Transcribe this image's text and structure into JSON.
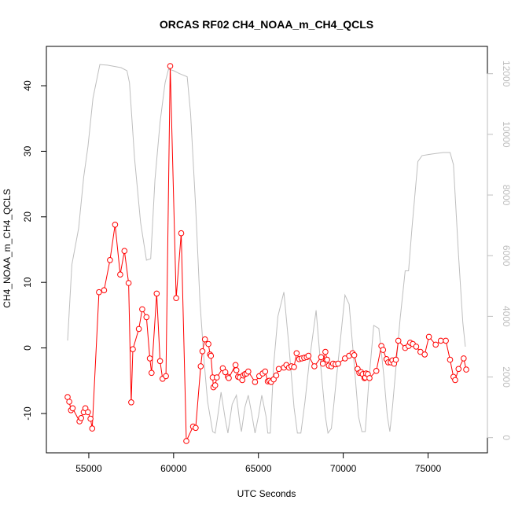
{
  "chart_data": {
    "type": "line",
    "title": "ORCAS RF02 CH4_NOAA_m_CH4_QCLS",
    "xlabel": "UTC Seconds",
    "ylabel": "CH4_NOAA_m_CH4_QCLS",
    "xlim": [
      52500,
      78500
    ],
    "ylim": [
      -16,
      46
    ],
    "y2lim": [
      -500,
      12900
    ],
    "x_ticks": [
      55000,
      60000,
      65000,
      70000,
      75000
    ],
    "y_ticks": [
      -10,
      0,
      10,
      20,
      30,
      40
    ],
    "y2_ticks": [
      0,
      2000,
      4000,
      6000,
      8000,
      10000,
      12000
    ],
    "x_tick_labels": [
      "55000",
      "60000",
      "65000",
      "70000",
      "75000"
    ],
    "y_tick_labels": [
      "-10",
      "0",
      "10",
      "20",
      "30",
      "40"
    ],
    "y2_tick_labels": [
      "0",
      "2000",
      "4000",
      "6000",
      "8000",
      "10000",
      "12000"
    ],
    "grid": false,
    "colors": {
      "primary": "#ff0000",
      "secondary": "#bebebe"
    },
    "series": [
      {
        "axis": "left",
        "style": "line+markers",
        "color": "#ff0000",
        "points": [
          [
            53750,
            -7.5
          ],
          [
            53850,
            -8.2
          ],
          [
            53950,
            -9.5
          ],
          [
            54050,
            -9.2
          ],
          [
            54450,
            -11.2
          ],
          [
            54550,
            -10.7
          ],
          [
            54700,
            -9.8
          ],
          [
            54800,
            -9.2
          ],
          [
            54950,
            -9.8
          ],
          [
            55100,
            -10.8
          ],
          [
            55200,
            -12.3
          ],
          [
            55600,
            8.5
          ],
          [
            55900,
            8.8
          ],
          [
            56250,
            13.4
          ],
          [
            56550,
            18.8
          ],
          [
            56850,
            11.2
          ],
          [
            57100,
            14.8
          ],
          [
            57350,
            9.9
          ],
          [
            57500,
            -8.3
          ],
          [
            57600,
            -0.2
          ],
          [
            57950,
            2.9
          ],
          [
            58150,
            5.9
          ],
          [
            58400,
            4.7
          ],
          [
            58600,
            -1.6
          ],
          [
            58700,
            -3.8
          ],
          [
            59000,
            8.3
          ],
          [
            59200,
            -2.0
          ],
          [
            59350,
            -4.7
          ],
          [
            59550,
            -4.3
          ],
          [
            59800,
            43.0
          ],
          [
            60150,
            7.6
          ],
          [
            60450,
            17.5
          ],
          [
            60750,
            -14.2
          ],
          [
            61150,
            -12.0
          ],
          [
            61300,
            -12.2
          ],
          [
            61600,
            -2.8
          ],
          [
            61700,
            -0.5
          ],
          [
            61850,
            1.3
          ],
          [
            62050,
            0.6
          ],
          [
            62150,
            -1.0
          ],
          [
            62200,
            -1.2
          ],
          [
            62300,
            -4.5
          ],
          [
            62350,
            -6.0
          ],
          [
            62450,
            -5.7
          ],
          [
            62550,
            -4.5
          ],
          [
            62900,
            -3.1
          ],
          [
            63050,
            -3.7
          ],
          [
            63200,
            -4.4
          ],
          [
            63250,
            -4.6
          ],
          [
            63650,
            -2.6
          ],
          [
            63700,
            -3.4
          ],
          [
            63800,
            -4.4
          ],
          [
            63900,
            -4.5
          ],
          [
            64050,
            -4.9
          ],
          [
            64100,
            -4.2
          ],
          [
            64200,
            -4.0
          ],
          [
            64300,
            -3.9
          ],
          [
            64400,
            -3.6
          ],
          [
            64800,
            -5.2
          ],
          [
            65050,
            -4.3
          ],
          [
            65250,
            -3.9
          ],
          [
            65400,
            -3.6
          ],
          [
            65550,
            -5.1
          ],
          [
            65650,
            -5.0
          ],
          [
            65750,
            -5.2
          ],
          [
            65900,
            -4.8
          ],
          [
            66050,
            -4.2
          ],
          [
            66200,
            -3.2
          ],
          [
            66500,
            -3.0
          ],
          [
            66650,
            -2.6
          ],
          [
            66800,
            -3.0
          ],
          [
            66950,
            -2.8
          ],
          [
            67100,
            -2.9
          ],
          [
            67250,
            -0.8
          ],
          [
            67400,
            -1.7
          ],
          [
            67550,
            -1.6
          ],
          [
            67700,
            -1.5
          ],
          [
            67850,
            -1.4
          ],
          [
            67950,
            -1.2
          ],
          [
            68300,
            -2.8
          ],
          [
            68700,
            -1.4
          ],
          [
            68800,
            -2.4
          ],
          [
            68950,
            -0.6
          ],
          [
            69050,
            -1.8
          ],
          [
            69150,
            -2.7
          ],
          [
            69300,
            -2.8
          ],
          [
            69400,
            -2.4
          ],
          [
            69550,
            -2.5
          ],
          [
            69700,
            -2.4
          ],
          [
            70100,
            -1.6
          ],
          [
            70350,
            -1.2
          ],
          [
            70550,
            -0.8
          ],
          [
            70650,
            -1.1
          ],
          [
            70850,
            -3.2
          ],
          [
            70950,
            -3.8
          ],
          [
            71050,
            -3.7
          ],
          [
            71150,
            -4.0
          ],
          [
            71250,
            -4.6
          ],
          [
            71300,
            -4.5
          ],
          [
            71350,
            -3.9
          ],
          [
            71450,
            -4.0
          ],
          [
            71550,
            -4.6
          ],
          [
            71950,
            -3.5
          ],
          [
            72250,
            0.3
          ],
          [
            72350,
            -0.3
          ],
          [
            72550,
            -1.7
          ],
          [
            72650,
            -2.2
          ],
          [
            72800,
            -2.2
          ],
          [
            72900,
            -1.9
          ],
          [
            73000,
            -2.4
          ],
          [
            73100,
            -1.8
          ],
          [
            73250,
            1.1
          ],
          [
            73650,
            0.0
          ],
          [
            73850,
            0.3
          ],
          [
            73950,
            0.8
          ],
          [
            74100,
            0.6
          ],
          [
            74300,
            0.2
          ],
          [
            74550,
            -0.6
          ],
          [
            74800,
            -1.0
          ],
          [
            75050,
            1.7
          ],
          [
            75450,
            0.5
          ],
          [
            75750,
            1.1
          ],
          [
            76050,
            1.1
          ],
          [
            76300,
            -1.8
          ],
          [
            76500,
            -4.4
          ],
          [
            76600,
            -4.9
          ],
          [
            76800,
            -3.2
          ],
          [
            77100,
            -1.6
          ],
          [
            77250,
            -3.3
          ]
        ]
      },
      {
        "axis": "right",
        "style": "line",
        "color": "#bebebe",
        "points": [
          [
            53750,
            3200
          ],
          [
            54000,
            5700
          ],
          [
            54400,
            6900
          ],
          [
            54700,
            8600
          ],
          [
            54950,
            9600
          ],
          [
            55250,
            11200
          ],
          [
            55650,
            12300
          ],
          [
            56100,
            12280
          ],
          [
            56900,
            12200
          ],
          [
            57250,
            12100
          ],
          [
            57400,
            11700
          ],
          [
            57700,
            9200
          ],
          [
            58050,
            7100
          ],
          [
            58400,
            5850
          ],
          [
            58650,
            5900
          ],
          [
            58900,
            8500
          ],
          [
            59200,
            10400
          ],
          [
            59500,
            11700
          ],
          [
            59700,
            12150
          ],
          [
            60000,
            12100
          ],
          [
            60350,
            12000
          ],
          [
            60800,
            11900
          ],
          [
            61000,
            10700
          ],
          [
            61300,
            7600
          ],
          [
            61550,
            4500
          ],
          [
            61800,
            2500
          ],
          [
            62000,
            1200
          ],
          [
            62300,
            200
          ],
          [
            62450,
            150
          ],
          [
            62600,
            700
          ],
          [
            62800,
            1500
          ],
          [
            63050,
            600
          ],
          [
            63200,
            150
          ],
          [
            63450,
            1100
          ],
          [
            63700,
            1400
          ],
          [
            63900,
            500
          ],
          [
            64000,
            200
          ],
          [
            64200,
            1000
          ],
          [
            64400,
            1400
          ],
          [
            64600,
            800
          ],
          [
            64800,
            150
          ],
          [
            65000,
            700
          ],
          [
            65200,
            1400
          ],
          [
            65450,
            700
          ],
          [
            65550,
            150
          ],
          [
            65700,
            150
          ],
          [
            65900,
            2400
          ],
          [
            66150,
            4000
          ],
          [
            66500,
            4800
          ],
          [
            66800,
            3000
          ],
          [
            67100,
            1000
          ],
          [
            67300,
            150
          ],
          [
            67500,
            150
          ],
          [
            67750,
            1200
          ],
          [
            68000,
            2500
          ],
          [
            68400,
            4200
          ],
          [
            68700,
            2200
          ],
          [
            68950,
            700
          ],
          [
            69100,
            150
          ],
          [
            69300,
            300
          ],
          [
            69700,
            2500
          ],
          [
            70100,
            4700
          ],
          [
            70350,
            4400
          ],
          [
            70650,
            2400
          ],
          [
            70900,
            700
          ],
          [
            71100,
            200
          ],
          [
            71300,
            200
          ],
          [
            71500,
            1800
          ],
          [
            71800,
            3700
          ],
          [
            72100,
            3600
          ],
          [
            72400,
            2000
          ],
          [
            72600,
            700
          ],
          [
            72750,
            200
          ],
          [
            72900,
            1000
          ],
          [
            73150,
            2600
          ],
          [
            73350,
            3900
          ],
          [
            73650,
            5500
          ],
          [
            73850,
            5500
          ],
          [
            74050,
            6900
          ],
          [
            74400,
            9100
          ],
          [
            74650,
            9300
          ],
          [
            75200,
            9350
          ],
          [
            75900,
            9400
          ],
          [
            76300,
            9400
          ],
          [
            76500,
            9000
          ],
          [
            76800,
            6000
          ],
          [
            77050,
            3800
          ],
          [
            77200,
            3000
          ]
        ]
      }
    ]
  }
}
